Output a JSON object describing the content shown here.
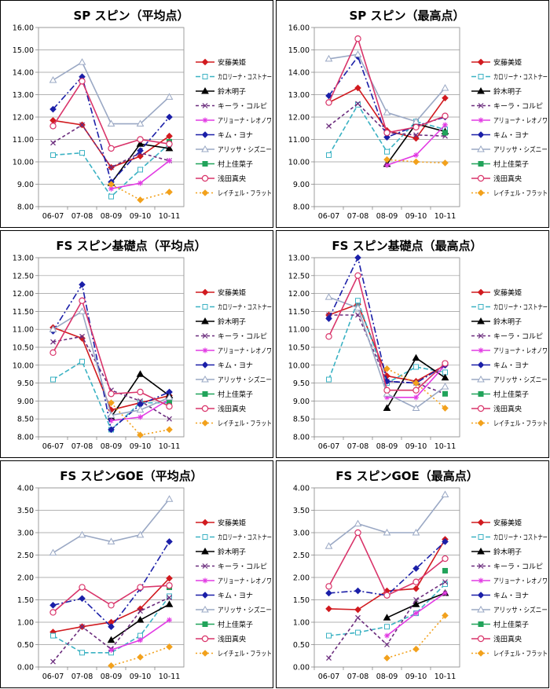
{
  "chart_data": [
    {
      "type": "line",
      "title": "SP スピン（平均点）",
      "categories": [
        "06-07",
        "07-08",
        "08-09",
        "09-10",
        "10-11"
      ],
      "ylim": [
        8.0,
        16.0
      ],
      "yticks": [
        "8.00",
        "9.00",
        "10.00",
        "11.00",
        "12.00",
        "13.00",
        "14.00",
        "15.00",
        "16.00"
      ],
      "grid": true,
      "legend": "right",
      "series": [
        {
          "name": "安藤美姫",
          "values": [
            11.85,
            11.65,
            9.75,
            10.25,
            11.15
          ]
        },
        {
          "name": "カロリーナ・コストナー",
          "values": [
            10.3,
            10.4,
            8.45,
            9.65,
            10.8
          ]
        },
        {
          "name": "鈴木明子",
          "values": [
            null,
            null,
            9.05,
            10.8,
            10.6
          ]
        },
        {
          "name": "キーラ・コルピ",
          "values": [
            10.85,
            11.65,
            9.75,
            10.4,
            10.05
          ]
        },
        {
          "name": "アリョーナ・レオノワ",
          "values": [
            null,
            null,
            8.8,
            9.05,
            10.05
          ]
        },
        {
          "name": "キム・ヨナ",
          "values": [
            12.35,
            13.8,
            9.1,
            10.5,
            12.0
          ]
        },
        {
          "name": "アリッサ・シズニー",
          "values": [
            13.65,
            14.45,
            11.7,
            11.7,
            12.9
          ]
        },
        {
          "name": "村上佳菜子",
          "values": [
            null,
            null,
            null,
            null,
            10.9
          ]
        },
        {
          "name": "浅田真央",
          "values": [
            11.6,
            13.6,
            10.6,
            11.0,
            10.8
          ]
        },
        {
          "name": "レイチェル・フラット",
          "values": [
            null,
            null,
            9.0,
            8.3,
            8.65
          ]
        }
      ]
    },
    {
      "type": "line",
      "title": "SP スピン（最高点）",
      "categories": [
        "06-07",
        "07-08",
        "08-09",
        "09-10",
        "10-11"
      ],
      "ylim": [
        8.0,
        16.0
      ],
      "yticks": [
        "8.00",
        "9.00",
        "10.00",
        "11.00",
        "12.00",
        "13.00",
        "14.00",
        "15.00",
        "16.00"
      ],
      "grid": true,
      "legend": "right",
      "series": [
        {
          "name": "安藤美姫",
          "values": [
            12.65,
            13.3,
            11.4,
            11.05,
            12.85
          ]
        },
        {
          "name": "カロリーナ・コストナー",
          "values": [
            10.3,
            12.55,
            10.45,
            11.8,
            11.45
          ]
        },
        {
          "name": "鈴木明子",
          "values": [
            null,
            null,
            9.9,
            11.7,
            11.35
          ]
        },
        {
          "name": "キーラ・コルピ",
          "values": [
            11.6,
            12.6,
            11.3,
            11.2,
            11.15
          ]
        },
        {
          "name": "アリョーナ・レオノワ",
          "values": [
            null,
            null,
            9.85,
            10.3,
            11.65
          ]
        },
        {
          "name": "キム・ヨナ",
          "values": [
            12.95,
            14.7,
            11.1,
            11.6,
            12.0
          ]
        },
        {
          "name": "アリッサ・シズニー",
          "values": [
            14.6,
            14.8,
            12.2,
            11.8,
            13.3
          ]
        },
        {
          "name": "村上佳菜子",
          "values": [
            null,
            null,
            null,
            null,
            11.3
          ]
        },
        {
          "name": "浅田真央",
          "values": [
            12.65,
            15.5,
            11.3,
            11.55,
            12.05
          ]
        },
        {
          "name": "レイチェル・フラット",
          "values": [
            null,
            null,
            10.1,
            10.0,
            9.95
          ]
        }
      ]
    },
    {
      "type": "line",
      "title": "FS スピン基礎点（平均点）",
      "categories": [
        "06-07",
        "07-08",
        "08-09",
        "09-10",
        "10-11"
      ],
      "ylim": [
        8.0,
        13.0
      ],
      "yticks": [
        "8.00",
        "8.50",
        "9.00",
        "9.50",
        "10.00",
        "10.50",
        "11.00",
        "11.50",
        "12.00",
        "12.50",
        "13.00"
      ],
      "grid": true,
      "legend": "right",
      "series": [
        {
          "name": "安藤美姫",
          "values": [
            11.05,
            10.75,
            8.75,
            8.95,
            9.15
          ]
        },
        {
          "name": "カロリーナ・コストナー",
          "values": [
            9.6,
            10.1,
            8.2,
            8.95,
            8.95
          ]
        },
        {
          "name": "鈴木明子",
          "values": [
            null,
            null,
            8.55,
            9.75,
            9.15
          ]
        },
        {
          "name": "キーラ・コルピ",
          "values": [
            10.65,
            10.8,
            9.3,
            9.0,
            8.5
          ]
        },
        {
          "name": "アリョーナ・レオノワ",
          "values": [
            null,
            null,
            8.45,
            8.55,
            9.05
          ]
        },
        {
          "name": "キム・ヨナ",
          "values": [
            10.95,
            12.25,
            8.2,
            8.9,
            9.25
          ]
        },
        {
          "name": "アリッサ・シズニー",
          "values": [
            11.0,
            11.5,
            8.6,
            8.75,
            9.1
          ]
        },
        {
          "name": "村上佳菜子",
          "values": [
            null,
            null,
            null,
            null,
            8.95
          ]
        },
        {
          "name": "浅田真央",
          "values": [
            10.35,
            11.8,
            9.2,
            9.25,
            8.85
          ]
        },
        {
          "name": "レイチェル・フラット",
          "values": [
            null,
            null,
            8.95,
            8.05,
            8.2
          ]
        }
      ]
    },
    {
      "type": "line",
      "title": "FS スピン基礎点（最高点）",
      "categories": [
        "06-07",
        "07-08",
        "08-09",
        "09-10",
        "10-11"
      ],
      "ylim": [
        8.0,
        13.0
      ],
      "yticks": [
        "8.00",
        "8.50",
        "9.00",
        "9.50",
        "10.00",
        "10.50",
        "11.00",
        "11.50",
        "12.00",
        "12.50",
        "13.00"
      ],
      "grid": true,
      "legend": "right",
      "series": [
        {
          "name": "安藤美姫",
          "values": [
            11.4,
            11.7,
            9.7,
            9.55,
            10.0
          ]
        },
        {
          "name": "カロリーナ・コストナー",
          "values": [
            9.6,
            11.8,
            9.5,
            9.95,
            9.8
          ]
        },
        {
          "name": "鈴木明子",
          "values": [
            null,
            null,
            8.8,
            10.2,
            9.65
          ]
        },
        {
          "name": "キーラ・コルピ",
          "values": [
            11.4,
            11.4,
            9.55,
            9.5,
            9.2
          ]
        },
        {
          "name": "アリョーナ・レオノワ",
          "values": [
            null,
            null,
            9.1,
            9.1,
            10.0
          ]
        },
        {
          "name": "キム・ヨナ",
          "values": [
            11.3,
            13.0,
            9.55,
            9.5,
            10.0
          ]
        },
        {
          "name": "アリッサ・シズニー",
          "values": [
            11.9,
            11.6,
            9.2,
            8.8,
            9.4
          ]
        },
        {
          "name": "村上佳菜子",
          "values": [
            null,
            null,
            null,
            null,
            9.2
          ]
        },
        {
          "name": "浅田真央",
          "values": [
            10.8,
            12.5,
            9.3,
            9.3,
            10.05
          ]
        },
        {
          "name": "レイチェル・フラット",
          "values": [
            null,
            null,
            9.9,
            9.5,
            8.8
          ]
        }
      ]
    },
    {
      "type": "line",
      "title": "FS スピンGOE（平均点）",
      "categories": [
        "06-07",
        "07-08",
        "08-09",
        "09-10",
        "10-11"
      ],
      "ylim": [
        0.0,
        4.0
      ],
      "yticks": [
        "0.00",
        "0.50",
        "1.00",
        "1.50",
        "2.00",
        "2.50",
        "3.00",
        "3.50",
        "4.00"
      ],
      "grid": true,
      "legend": "right",
      "series": [
        {
          "name": "安藤美姫",
          "values": [
            0.78,
            0.9,
            1.0,
            1.3,
            1.98
          ]
        },
        {
          "name": "カロリーナ・コストナー",
          "values": [
            0.7,
            0.32,
            0.32,
            0.7,
            1.58
          ]
        },
        {
          "name": "鈴木明子",
          "values": [
            null,
            null,
            0.6,
            1.05,
            1.4
          ]
        },
        {
          "name": "キーラ・コルピ",
          "values": [
            0.12,
            0.9,
            0.4,
            1.25,
            1.55
          ]
        },
        {
          "name": "アリョーナ・レオノワ",
          "values": [
            null,
            null,
            0.38,
            0.6,
            1.05
          ]
        },
        {
          "name": "キム・ヨナ",
          "values": [
            1.38,
            1.53,
            0.9,
            1.75,
            2.8
          ]
        },
        {
          "name": "アリッサ・シズニー",
          "values": [
            2.55,
            2.95,
            2.8,
            2.95,
            3.75
          ]
        },
        {
          "name": "村上佳菜子",
          "values": [
            null,
            null,
            null,
            null,
            1.78
          ]
        },
        {
          "name": "浅田真央",
          "values": [
            1.22,
            1.78,
            1.38,
            1.78,
            1.82
          ]
        },
        {
          "name": "レイチェル・フラット",
          "values": [
            null,
            null,
            0.03,
            0.22,
            0.45
          ]
        }
      ]
    },
    {
      "type": "line",
      "title": "FS スピンGOE（最高点）",
      "categories": [
        "06-07",
        "07-08",
        "08-09",
        "09-10",
        "10-11"
      ],
      "ylim": [
        0.0,
        4.0
      ],
      "yticks": [
        "0.00",
        "0.50",
        "1.00",
        "1.50",
        "2.00",
        "2.50",
        "3.00",
        "3.50",
        "4.00"
      ],
      "grid": true,
      "legend": "right",
      "series": [
        {
          "name": "安藤美姫",
          "values": [
            1.3,
            1.28,
            1.7,
            1.75,
            2.85
          ]
        },
        {
          "name": "カロリーナ・コストナー",
          "values": [
            0.7,
            0.77,
            0.9,
            1.2,
            1.85
          ]
        },
        {
          "name": "鈴木明子",
          "values": [
            null,
            null,
            1.1,
            1.4,
            1.65
          ]
        },
        {
          "name": "キーラ・コルピ",
          "values": [
            0.2,
            1.1,
            0.5,
            1.5,
            1.9
          ]
        },
        {
          "name": "アリョーナ・レオノワ",
          "values": [
            null,
            null,
            0.7,
            1.2,
            1.65
          ]
        },
        {
          "name": "キム・ヨナ",
          "values": [
            1.65,
            1.7,
            1.6,
            2.2,
            2.8
          ]
        },
        {
          "name": "アリッサ・シズニー",
          "values": [
            2.7,
            3.2,
            3.0,
            3.0,
            3.85
          ]
        },
        {
          "name": "村上佳菜子",
          "values": [
            null,
            null,
            null,
            null,
            2.15
          ]
        },
        {
          "name": "浅田真央",
          "values": [
            1.8,
            3.0,
            1.6,
            1.9,
            2.42
          ]
        },
        {
          "name": "レイチェル・フラット",
          "values": [
            null,
            null,
            0.2,
            0.4,
            1.15
          ]
        }
      ]
    }
  ],
  "series_styles": [
    {
      "color": "#d11a1f",
      "marker": "diamond",
      "dash": "",
      "marker_fill": "filled"
    },
    {
      "color": "#3bb2c3",
      "marker": "square",
      "dash": "6,3",
      "marker_fill": "hollow"
    },
    {
      "color": "#000000",
      "marker": "triangle",
      "dash": "",
      "marker_fill": "filled"
    },
    {
      "color": "#6b2c7d",
      "marker": "x",
      "dash": "4,3",
      "marker_fill": "none"
    },
    {
      "color": "#e23be3",
      "marker": "star",
      "dash": "",
      "marker_fill": "none"
    },
    {
      "color": "#1b1fa8",
      "marker": "diamond",
      "dash": "8,3,2,3",
      "marker_fill": "filled"
    },
    {
      "color": "#9aa8c4",
      "marker": "triangle",
      "dash": "",
      "marker_fill": "hollow"
    },
    {
      "color": "#21a35a",
      "marker": "square",
      "dash": "",
      "marker_fill": "filled"
    },
    {
      "color": "#d9346a",
      "marker": "circle",
      "dash": "",
      "marker_fill": "hollow"
    },
    {
      "color": "#f2a11c",
      "marker": "diamond",
      "dash": "2,3",
      "marker_fill": "filled"
    }
  ]
}
